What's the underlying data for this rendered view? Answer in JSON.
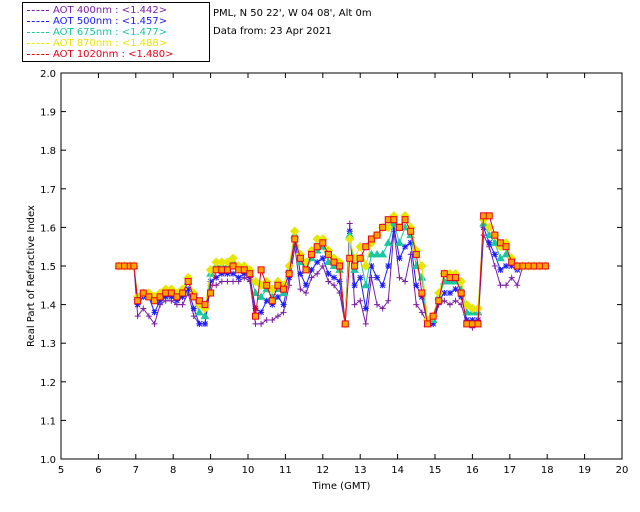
{
  "legend": [
    {
      "label": "AOT  400nm : <1.442>",
      "color": "#7b1fa2"
    },
    {
      "label": "AOT  500nm : <1.457>",
      "color": "#1a1aff"
    },
    {
      "label": "AOT  675nm : <1.477>",
      "color": "#19c8a0"
    },
    {
      "label": "AOT  870nm : <1.488>",
      "color": "#e6e600"
    },
    {
      "label": "AOT 1020nm : <1.480>",
      "color": "#e6001a"
    }
  ],
  "site_text": "PML, N 50 22', W 04 08', Alt 0m",
  "date_text": "Data from: 23 Apr 2021",
  "chart_data": {
    "type": "line",
    "xlabel": "Time (GMT)",
    "ylabel": "Real Part of Refractive Index",
    "xlim": [
      5,
      20
    ],
    "ylim": [
      1.0,
      2.0
    ],
    "xticks": [
      "5",
      "6",
      "7",
      "8",
      "9",
      "10",
      "11",
      "12",
      "13",
      "14",
      "15",
      "16",
      "17",
      "18",
      "19",
      "20"
    ],
    "yticks": [
      "1.0",
      "1.1",
      "1.2",
      "1.3",
      "1.4",
      "1.5",
      "1.6",
      "1.7",
      "1.8",
      "1.9",
      "2.0"
    ],
    "x": [
      6.55,
      6.7,
      6.85,
      6.95,
      7.05,
      7.2,
      7.35,
      7.5,
      7.65,
      7.8,
      7.95,
      8.1,
      8.25,
      8.4,
      8.55,
      8.7,
      8.85,
      9.0,
      9.15,
      9.3,
      9.45,
      9.6,
      9.75,
      9.9,
      10.05,
      10.2,
      10.35,
      10.5,
      10.65,
      10.8,
      10.95,
      11.1,
      11.25,
      11.4,
      11.55,
      11.7,
      11.85,
      12.0,
      12.15,
      12.3,
      12.45,
      12.6,
      12.72,
      12.85,
      13.0,
      13.15,
      13.3,
      13.45,
      13.6,
      13.75,
      13.9,
      14.05,
      14.2,
      14.35,
      14.5,
      14.65,
      14.8,
      14.95,
      15.1,
      15.25,
      15.4,
      15.55,
      15.7,
      15.85,
      16.0,
      16.15,
      16.3,
      16.45,
      16.6,
      16.75,
      16.9,
      17.05,
      17.2,
      17.35,
      17.5,
      17.65,
      17.8,
      17.95
    ],
    "series": [
      {
        "name": "AOT  400nm : <1.442>",
        "values": [
          1.5,
          1.5,
          1.5,
          1.5,
          1.37,
          1.39,
          1.37,
          1.35,
          1.4,
          1.41,
          1.41,
          1.4,
          1.4,
          1.43,
          1.37,
          1.35,
          1.35,
          1.45,
          1.45,
          1.46,
          1.46,
          1.46,
          1.46,
          1.47,
          1.46,
          1.35,
          1.35,
          1.36,
          1.36,
          1.37,
          1.38,
          1.45,
          1.55,
          1.44,
          1.43,
          1.47,
          1.48,
          1.5,
          1.46,
          1.45,
          1.43,
          1.35,
          1.61,
          1.4,
          1.41,
          1.35,
          1.47,
          1.4,
          1.39,
          1.41,
          1.59,
          1.47,
          1.46,
          1.53,
          1.4,
          1.38,
          1.35,
          1.35,
          1.4,
          1.41,
          1.4,
          1.41,
          1.4,
          1.35,
          1.34,
          1.35,
          1.58,
          1.55,
          1.5,
          1.45,
          1.45,
          1.47,
          1.45,
          1.5,
          1.5,
          1.5,
          1.5,
          1.5
        ]
      },
      {
        "name": "AOT  500nm : <1.457>",
        "values": [
          1.5,
          1.5,
          1.5,
          1.5,
          1.4,
          1.42,
          1.42,
          1.38,
          1.41,
          1.42,
          1.42,
          1.41,
          1.42,
          1.44,
          1.39,
          1.35,
          1.35,
          1.46,
          1.47,
          1.48,
          1.48,
          1.48,
          1.47,
          1.48,
          1.47,
          1.39,
          1.38,
          1.41,
          1.4,
          1.42,
          1.4,
          1.47,
          1.57,
          1.48,
          1.45,
          1.49,
          1.51,
          1.52,
          1.48,
          1.47,
          1.46,
          1.35,
          1.59,
          1.45,
          1.47,
          1.39,
          1.5,
          1.47,
          1.45,
          1.5,
          1.6,
          1.52,
          1.55,
          1.56,
          1.45,
          1.42,
          1.35,
          1.35,
          1.41,
          1.43,
          1.43,
          1.44,
          1.42,
          1.36,
          1.36,
          1.36,
          1.6,
          1.56,
          1.53,
          1.49,
          1.5,
          1.5,
          1.49,
          1.5,
          1.5,
          1.5,
          1.5,
          1.5
        ]
      },
      {
        "name": "AOT  675nm : <1.477>",
        "values": [
          1.5,
          1.5,
          1.5,
          1.5,
          1.42,
          1.43,
          1.43,
          1.42,
          1.43,
          1.44,
          1.43,
          1.43,
          1.43,
          1.46,
          1.42,
          1.38,
          1.37,
          1.48,
          1.5,
          1.5,
          1.5,
          1.51,
          1.49,
          1.49,
          1.48,
          1.43,
          1.42,
          1.44,
          1.42,
          1.44,
          1.43,
          1.49,
          1.58,
          1.51,
          1.49,
          1.52,
          1.54,
          1.55,
          1.51,
          1.5,
          1.49,
          1.35,
          1.58,
          1.49,
          1.52,
          1.45,
          1.53,
          1.53,
          1.53,
          1.56,
          1.61,
          1.56,
          1.6,
          1.58,
          1.5,
          1.47,
          1.35,
          1.36,
          1.42,
          1.46,
          1.46,
          1.46,
          1.44,
          1.38,
          1.38,
          1.38,
          1.61,
          1.58,
          1.56,
          1.52,
          1.53,
          1.51,
          1.5,
          1.5,
          1.5,
          1.5,
          1.5,
          1.5
        ]
      },
      {
        "name": "AOT  870nm : <1.488>",
        "values": [
          1.5,
          1.5,
          1.5,
          1.5,
          1.42,
          1.43,
          1.43,
          1.42,
          1.43,
          1.44,
          1.44,
          1.43,
          1.44,
          1.47,
          1.43,
          1.4,
          1.39,
          1.49,
          1.51,
          1.51,
          1.51,
          1.52,
          1.5,
          1.5,
          1.49,
          1.46,
          1.45,
          1.46,
          1.44,
          1.46,
          1.45,
          1.5,
          1.59,
          1.53,
          1.51,
          1.54,
          1.57,
          1.57,
          1.54,
          1.52,
          1.51,
          1.35,
          1.57,
          1.52,
          1.55,
          1.5,
          1.56,
          1.58,
          1.6,
          1.6,
          1.63,
          1.6,
          1.63,
          1.6,
          1.54,
          1.5,
          1.36,
          1.37,
          1.43,
          1.48,
          1.48,
          1.48,
          1.46,
          1.4,
          1.39,
          1.39,
          1.62,
          1.6,
          1.58,
          1.55,
          1.56,
          1.52,
          1.5,
          1.5,
          1.5,
          1.5,
          1.5,
          1.5
        ]
      },
      {
        "name": "AOT 1020nm : <1.480>",
        "values": [
          1.5,
          1.5,
          1.5,
          1.5,
          1.41,
          1.43,
          1.42,
          1.41,
          1.42,
          1.43,
          1.43,
          1.42,
          1.43,
          1.46,
          1.42,
          1.41,
          1.4,
          1.43,
          1.49,
          1.49,
          1.49,
          1.5,
          1.49,
          1.49,
          1.48,
          1.37,
          1.49,
          1.45,
          1.41,
          1.45,
          1.44,
          1.48,
          1.57,
          1.52,
          1.49,
          1.53,
          1.55,
          1.56,
          1.53,
          1.51,
          1.5,
          1.35,
          1.52,
          1.5,
          1.52,
          1.55,
          1.57,
          1.58,
          1.6,
          1.62,
          1.62,
          1.6,
          1.62,
          1.59,
          1.53,
          1.43,
          1.35,
          1.37,
          1.41,
          1.48,
          1.47,
          1.47,
          1.43,
          1.35,
          1.35,
          1.35,
          1.63,
          1.63,
          1.58,
          1.56,
          1.55,
          1.51,
          1.5,
          1.5,
          1.5,
          1.5,
          1.5,
          1.5
        ]
      }
    ]
  }
}
